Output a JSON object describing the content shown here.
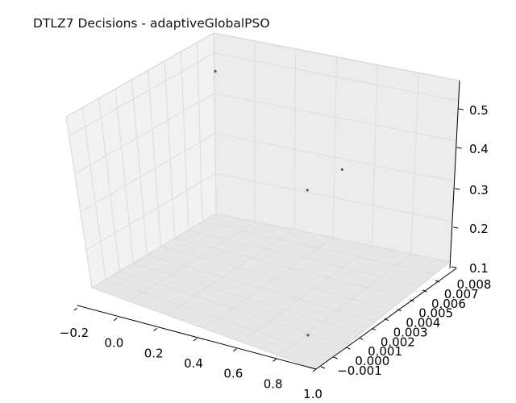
{
  "chart_data": {
    "type": "scatter",
    "title": "DTLZ7 Decisions - adaptiveGlobalPSO",
    "x_ticks": [
      "−0.2",
      "0.0",
      "0.2",
      "0.4",
      "0.6",
      "0.8",
      "1.0"
    ],
    "y_ticks": [
      "−0.001",
      "0.000",
      "0.001",
      "0.002",
      "0.003",
      "0.004",
      "0.005",
      "0.006",
      "0.007",
      "0.008"
    ],
    "z_ticks": [
      "0.1",
      "0.2",
      "0.3",
      "0.4",
      "0.5"
    ],
    "xlim": [
      -0.2,
      1.0
    ],
    "ylim": [
      -0.001,
      0.008
    ],
    "zlim": [
      0.1,
      0.55
    ],
    "grid": true,
    "points": [
      {
        "x": 0.02,
        "y": 0.0068,
        "z": 0.54
      },
      {
        "x": 0.62,
        "y": 0.0072,
        "z": 0.38
      },
      {
        "x": 0.55,
        "y": 0.0055,
        "z": 0.35
      },
      {
        "x": 0.83,
        "y": 0.0008,
        "z": 0.12
      }
    ],
    "point_color": "#555555"
  }
}
